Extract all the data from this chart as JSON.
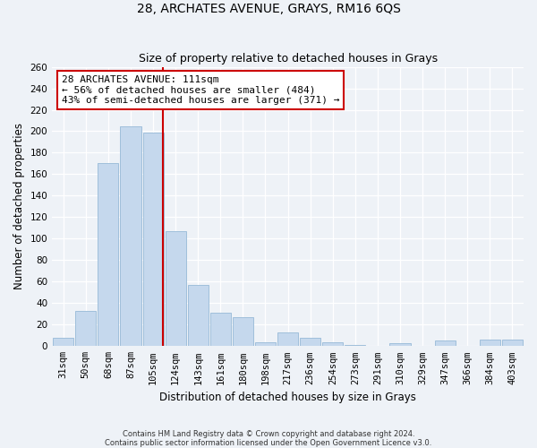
{
  "title": "28, ARCHATES AVENUE, GRAYS, RM16 6QS",
  "subtitle": "Size of property relative to detached houses in Grays",
  "xlabel": "Distribution of detached houses by size in Grays",
  "ylabel": "Number of detached properties",
  "categories": [
    "31sqm",
    "50sqm",
    "68sqm",
    "87sqm",
    "105sqm",
    "124sqm",
    "143sqm",
    "161sqm",
    "180sqm",
    "198sqm",
    "217sqm",
    "236sqm",
    "254sqm",
    "273sqm",
    "291sqm",
    "310sqm",
    "329sqm",
    "347sqm",
    "366sqm",
    "384sqm",
    "403sqm"
  ],
  "values": [
    8,
    33,
    170,
    205,
    199,
    107,
    57,
    31,
    27,
    4,
    13,
    8,
    4,
    1,
    0,
    3,
    0,
    5,
    0,
    6,
    6
  ],
  "bar_color": "#c5d8ed",
  "bar_edge_color": "#a0bfdb",
  "vline_color": "#cc0000",
  "vline_x": 4.42,
  "ylim": [
    0,
    260
  ],
  "yticks": [
    0,
    20,
    40,
    60,
    80,
    100,
    120,
    140,
    160,
    180,
    200,
    220,
    240,
    260
  ],
  "annotation_title": "28 ARCHATES AVENUE: 111sqm",
  "annotation_line1": "← 56% of detached houses are smaller (484)",
  "annotation_line2": "43% of semi-detached houses are larger (371) →",
  "annotation_box_color": "#cc0000",
  "footer_line1": "Contains HM Land Registry data © Crown copyright and database right 2024.",
  "footer_line2": "Contains public sector information licensed under the Open Government Licence v3.0.",
  "background_color": "#eef2f7",
  "grid_color": "#ffffff",
  "title_fontsize": 10,
  "subtitle_fontsize": 9,
  "axis_label_fontsize": 8.5,
  "tick_fontsize": 7.5,
  "annotation_fontsize": 8,
  "footer_fontsize": 6
}
